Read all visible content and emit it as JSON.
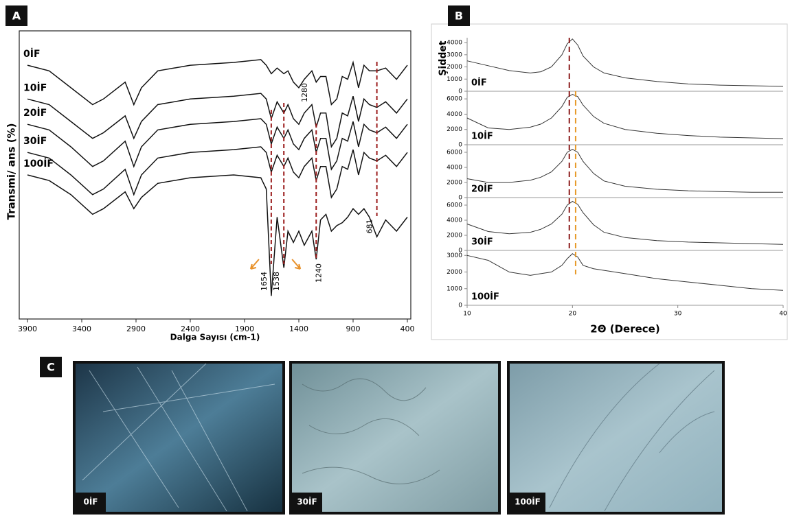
{
  "panel_labels": [
    "A",
    "B",
    "C"
  ],
  "chart_data": [
    {
      "type": "line",
      "x_label": "Dalga Sayısı (cm-1)",
      "y_label": "Transmi/ ans (%)",
      "x": [
        3900,
        3700,
        3500,
        3300,
        3200,
        3000,
        2920,
        2850,
        2700,
        2400,
        2000,
        1750,
        1700,
        1654,
        1600,
        1538,
        1500,
        1450,
        1400,
        1350,
        1280,
        1240,
        1200,
        1150,
        1100,
        1050,
        1000,
        950,
        900,
        850,
        800,
        750,
        681,
        600,
        500,
        400
      ],
      "xlim": [
        3900,
        400
      ],
      "xticks": [
        3900,
        3400,
        2900,
        2400,
        1900,
        1400,
        900,
        400
      ],
      "ylim": [
        0,
        100
      ],
      "series": [
        {
          "name": "0İF",
          "color": "#111111",
          "values": [
            89,
            87,
            81,
            75,
            77,
            83,
            75,
            81,
            87,
            89,
            90,
            91,
            89,
            86,
            88,
            86,
            87,
            83,
            81,
            84,
            87,
            83,
            85,
            85,
            75,
            77,
            85,
            84,
            90,
            81,
            89,
            87,
            87,
            88,
            84,
            89
          ]
        },
        {
          "name": "10İF",
          "color": "#111111",
          "values": [
            77,
            75,
            69,
            63,
            65,
            71,
            63,
            69,
            75,
            77,
            78,
            79,
            77,
            70,
            76,
            72,
            75,
            70,
            68,
            72,
            75,
            67,
            72,
            72,
            60,
            63,
            72,
            71,
            78,
            69,
            77,
            75,
            74,
            76,
            72,
            77
          ]
        },
        {
          "name": "20İF",
          "color": "#111111",
          "values": [
            68,
            66,
            60,
            53,
            55,
            62,
            53,
            60,
            66,
            68,
            69,
            70,
            68,
            61,
            67,
            63,
            66,
            61,
            59,
            63,
            66,
            58,
            63,
            63,
            52,
            55,
            63,
            62,
            69,
            60,
            68,
            66,
            65,
            67,
            63,
            68
          ]
        },
        {
          "name": "30İF",
          "color": "#111111",
          "values": [
            58,
            56,
            50,
            43,
            45,
            52,
            43,
            50,
            56,
            58,
            59,
            60,
            58,
            51,
            57,
            53,
            56,
            51,
            49,
            53,
            56,
            48,
            53,
            53,
            42,
            45,
            53,
            52,
            59,
            50,
            58,
            56,
            55,
            57,
            53,
            58
          ]
        },
        {
          "name": "100İF",
          "color": "#111111",
          "values": [
            50,
            48,
            43,
            36,
            38,
            44,
            38,
            42,
            47,
            49,
            50,
            49,
            45,
            7,
            35,
            17,
            30,
            26,
            30,
            25,
            30,
            20,
            34,
            36,
            30,
            32,
            33,
            35,
            38,
            36,
            38,
            35,
            28,
            34,
            30,
            35
          ]
        }
      ],
      "peak_labels": [
        {
          "value": 1654,
          "line": true,
          "arrow": true
        },
        {
          "value": 1538,
          "line": true,
          "arrow": true
        },
        {
          "value": 1240,
          "line": true,
          "arrow": false
        },
        {
          "value": 1280,
          "line": false,
          "arrow": false
        },
        {
          "value": 681,
          "line": true,
          "arrow": false
        }
      ],
      "line_color": "#9b1c1c",
      "arrow_color": "#e8912a"
    },
    {
      "type": "stacked-line",
      "x_label": "2Θ (Derece)",
      "y_label": "Şiddet",
      "x": [
        10,
        12,
        14,
        16,
        17,
        18,
        19,
        19.5,
        20,
        20.5,
        21,
        22,
        23,
        25,
        28,
        31,
        34,
        37,
        40
      ],
      "xlim": [
        10,
        40
      ],
      "xticks": [
        10,
        20,
        30,
        40
      ],
      "series": [
        {
          "name": "0İF",
          "color": "#333333",
          "ylim": [
            0,
            4400
          ],
          "yticks": [
            0,
            1000,
            2000,
            3000,
            4000
          ],
          "values": [
            2500,
            2100,
            1700,
            1500,
            1600,
            2000,
            3000,
            3900,
            4300,
            3800,
            2900,
            2000,
            1500,
            1100,
            800,
            600,
            500,
            450,
            400
          ]
        },
        {
          "name": "10İF",
          "color": "#333333",
          "ylim": [
            0,
            7000
          ],
          "yticks": [
            0,
            2000,
            4000,
            6000
          ],
          "values": [
            3500,
            2200,
            2000,
            2300,
            2700,
            3500,
            5000,
            6200,
            6600,
            6300,
            5200,
            3700,
            2800,
            2000,
            1500,
            1200,
            1000,
            900,
            800
          ]
        },
        {
          "name": "20İF",
          "color": "#333333",
          "ylim": [
            0,
            7000
          ],
          "yticks": [
            0,
            2000,
            4000,
            6000
          ],
          "values": [
            2500,
            2000,
            2000,
            2300,
            2700,
            3400,
            4800,
            6000,
            6400,
            6000,
            4800,
            3200,
            2200,
            1500,
            1100,
            900,
            800,
            700,
            700
          ]
        },
        {
          "name": "30İF",
          "color": "#333333",
          "ylim": [
            0,
            7000
          ],
          "yticks": [
            0,
            2000,
            4000,
            6000
          ],
          "values": [
            3500,
            2500,
            2200,
            2400,
            2800,
            3500,
            4800,
            6000,
            6500,
            6100,
            5000,
            3400,
            2400,
            1700,
            1300,
            1100,
            1000,
            900,
            800
          ]
        },
        {
          "name": "100İF",
          "color": "#333333",
          "ylim": [
            0,
            3300
          ],
          "yticks": [
            0,
            1000,
            2000,
            3000
          ],
          "values": [
            3000,
            2700,
            2000,
            1800,
            1900,
            2000,
            2400,
            2800,
            3100,
            2900,
            2400,
            2200,
            2100,
            1900,
            1600,
            1400,
            1200,
            1000,
            900
          ]
        }
      ],
      "reference_lines": [
        {
          "x": 19.7,
          "color": "#8b1a1a"
        },
        {
          "x": 20.3,
          "color": "#e69a28"
        }
      ]
    }
  ],
  "micrographs": {
    "captions": [
      "0İF",
      "30İF",
      "100İF"
    ]
  }
}
